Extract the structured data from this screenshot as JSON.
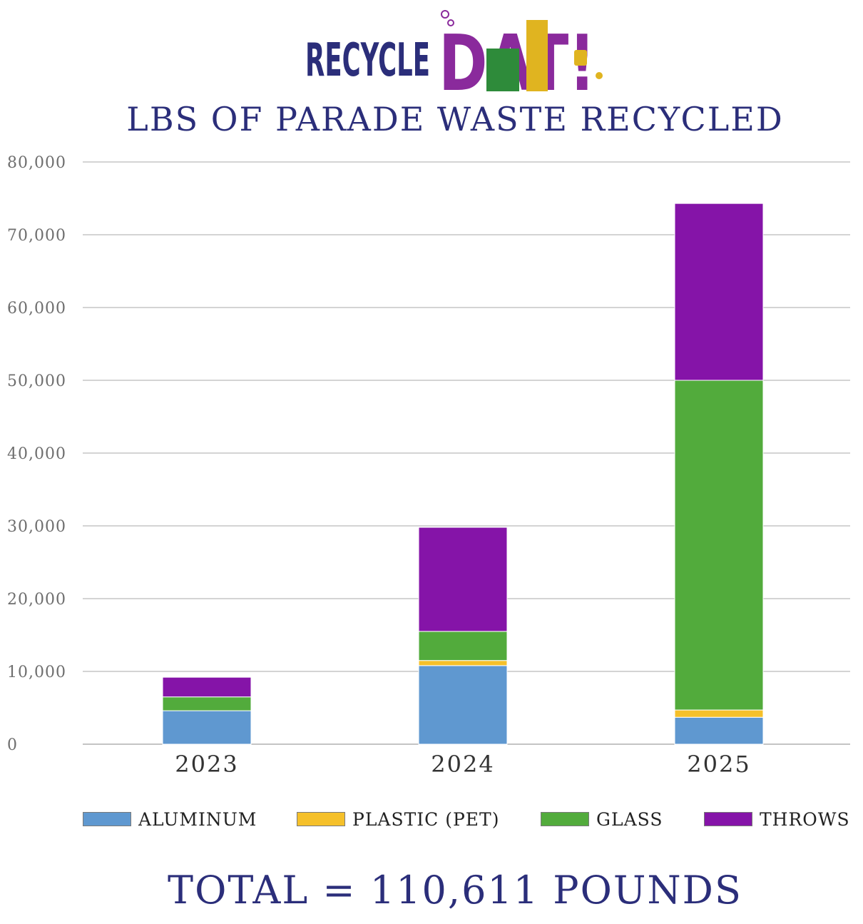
{
  "logo": {
    "word1": "RECYCLE",
    "word2": "DAT!"
  },
  "chart_data": {
    "type": "bar",
    "stacked": true,
    "title": "LBS OF PARADE WASTE RECYCLED",
    "xlabel": "",
    "ylabel": "",
    "categories": [
      "2023",
      "2024",
      "2025"
    ],
    "series": [
      {
        "name": "ALUMINUM",
        "color": "#5f98d0",
        "values": [
          4600,
          10800,
          3700
        ]
      },
      {
        "name": "PLASTIC (PET)",
        "color": "#f5c02a",
        "values": [
          0,
          700,
          1000
        ]
      },
      {
        "name": "GLASS",
        "color": "#52ab3c",
        "values": [
          1900,
          4000,
          45300
        ]
      },
      {
        "name": "THROWS",
        "color": "#8514a8",
        "values": [
          2700,
          14300,
          24300
        ]
      }
    ],
    "ylim": [
      0,
      80000
    ],
    "yticks": [
      "0",
      "10,000",
      "20,000",
      "30,000",
      "40,000",
      "50,000",
      "60,000",
      "70,000",
      "80,000"
    ],
    "grid": true,
    "legend_position": "bottom"
  },
  "summary": {
    "total_text": "TOTAL = 110,611 POUNDS"
  },
  "colors": {
    "title": "#2b2e7a",
    "logo_blue": "#2b2e7a",
    "logo_purple": "#8a2a9c",
    "logo_green": "#2e8b3a",
    "logo_gold": "#e0b420"
  }
}
